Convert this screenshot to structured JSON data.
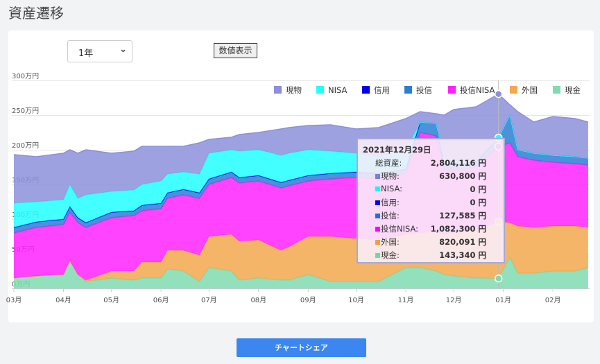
{
  "page_title": "資産遷移",
  "period_select": {
    "value": "1年"
  },
  "show_values_button": "数値表示",
  "share_button": "チャートシェア",
  "chart_data": {
    "type": "area",
    "stacked": true,
    "y_unit": "万円",
    "ylim": [
      0,
      300
    ],
    "y_ticks": [
      "0万円",
      "50万円",
      "100万円",
      "150万円",
      "200万円",
      "250万円",
      "300万円"
    ],
    "x_ticks": [
      "03月",
      "04月",
      "05月",
      "06月",
      "07月",
      "08月",
      "09月",
      "10月",
      "11月",
      "12月",
      "01月",
      "02月"
    ],
    "x_tick_dates": [
      "2021-03-01",
      "2021-04-01",
      "2021-05-01",
      "2021-06-01",
      "2021-07-01",
      "2021-08-01",
      "2021-09-01",
      "2021-10-01",
      "2021-11-01",
      "2021-12-01",
      "2022-01-01",
      "2022-02-01"
    ],
    "grid": true,
    "legend_position": "top-right",
    "x": [
      "2021-03-01",
      "2021-03-15",
      "2021-04-01",
      "2021-04-05",
      "2021-04-10",
      "2021-04-15",
      "2021-05-01",
      "2021-05-15",
      "2021-05-20",
      "2021-06-01",
      "2021-06-05",
      "2021-06-15",
      "2021-06-25",
      "2021-07-01",
      "2021-07-15",
      "2021-07-20",
      "2021-08-01",
      "2021-08-15",
      "2021-08-20",
      "2021-09-01",
      "2021-09-15",
      "2021-10-01",
      "2021-10-15",
      "2021-11-01",
      "2021-11-10",
      "2021-11-20",
      "2021-11-25",
      "2021-12-01",
      "2021-12-15",
      "2021-12-29",
      "2022-01-05",
      "2022-01-10",
      "2022-01-20",
      "2022-02-01",
      "2022-02-15",
      "2022-02-23"
    ],
    "series": [
      {
        "name": "現金",
        "color": "#7fdcb0",
        "values": [
          15,
          18,
          20,
          40,
          20,
          10,
          15,
          12,
          15,
          15,
          28,
          25,
          10,
          30,
          25,
          12,
          15,
          12,
          12,
          20,
          10,
          10,
          10,
          30,
          30,
          25,
          20,
          18,
          15,
          14.334,
          45,
          22,
          22,
          25,
          25,
          30
        ]
      },
      {
        "name": "外国",
        "color": "#f2a84e",
        "values": [
          0,
          0,
          0,
          0,
          0,
          2,
          10,
          13,
          23,
          23,
          27,
          30,
          38,
          45,
          53,
          56,
          55,
          43,
          48,
          55,
          65,
          62,
          60,
          48,
          50,
          57,
          58,
          62,
          70,
          82.0091,
          50,
          68,
          66,
          65,
          65,
          58
        ]
      },
      {
        "name": "投信NISA",
        "color": "#ff22ff",
        "values": [
          65,
          70,
          72,
          70,
          75,
          76,
          77,
          80,
          74,
          77,
          75,
          80,
          82,
          75,
          82,
          84,
          85,
          90,
          88,
          80,
          83,
          88,
          88,
          87,
          145,
          138,
          94,
          90,
          90,
          108.23,
          115,
          100,
          97,
          92,
          90,
          90
        ]
      },
      {
        "name": "投信",
        "color": "#2a7fd4",
        "values": [
          8,
          8,
          8,
          8,
          7,
          7,
          8,
          7,
          8,
          8,
          8,
          8,
          8,
          8,
          8,
          8,
          8,
          8,
          8,
          8,
          8,
          8,
          8,
          7,
          15,
          18,
          8,
          8,
          8,
          12.7585,
          40,
          10,
          10,
          10,
          10,
          10
        ]
      },
      {
        "name": "信用",
        "color": "#0000ee",
        "values": [
          0,
          0,
          0,
          0,
          0,
          0,
          0,
          0,
          0,
          0,
          0,
          0,
          0,
          0,
          0,
          0,
          0,
          0,
          0,
          0,
          0,
          0,
          0,
          0,
          0,
          0,
          0,
          0,
          0,
          0,
          0,
          0,
          0,
          0,
          0,
          0
        ]
      },
      {
        "name": "NISA",
        "color": "#22ffff",
        "values": [
          35,
          29,
          28,
          32,
          28,
          40,
          30,
          30,
          30,
          32,
          27,
          25,
          27,
          37,
          32,
          38,
          37,
          39,
          39,
          37,
          32,
          27,
          24,
          28,
          0,
          0,
          5,
          4,
          3,
          0,
          0,
          0,
          0,
          0,
          0,
          0
        ]
      },
      {
        "name": "現物",
        "color": "#8c90db",
        "values": [
          70,
          65,
          67,
          50,
          65,
          65,
          55,
          56,
          55,
          50,
          40,
          37,
          45,
          20,
          18,
          24,
          25,
          38,
          37,
          35,
          38,
          35,
          42,
          45,
          15,
          14,
          65,
          76,
          76,
          63.08,
          15,
          55,
          45,
          56,
          55,
          52
        ]
      }
    ],
    "legend_order": [
      "現物",
      "NISA",
      "信用",
      "投信",
      "投信NISA",
      "外国",
      "現金"
    ],
    "tooltip": {
      "date": "2021年12月29日",
      "rows": [
        {
          "label": "総資産:",
          "value": "2,804,116 円",
          "color": ""
        },
        {
          "label": "現物:",
          "value": "630,800 円",
          "color": "#7b7fd4"
        },
        {
          "label": "NISA:",
          "value": "0 円",
          "color": "#00ffff"
        },
        {
          "label": "信用:",
          "value": "0 円",
          "color": "#0000ee"
        },
        {
          "label": "投信:",
          "value": "127,585 円",
          "color": "#1a74d2"
        },
        {
          "label": "投信NISA:",
          "value": "1,082,300 円",
          "color": "#ff00ff"
        },
        {
          "label": "外国:",
          "value": "820,091 円",
          "color": "#f0a040"
        },
        {
          "label": "現金:",
          "value": "143,340 円",
          "color": "#70d8a8"
        }
      ]
    },
    "hover_date": "2021-12-29"
  }
}
